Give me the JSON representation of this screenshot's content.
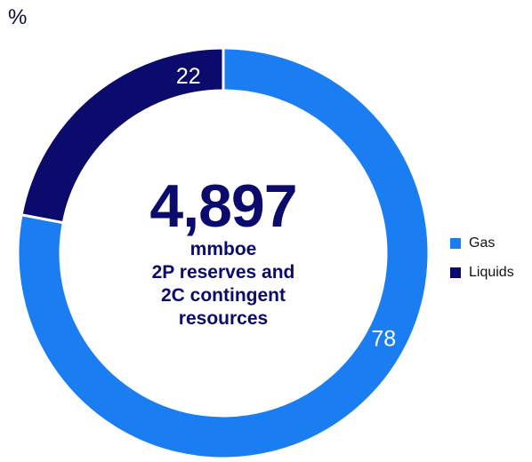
{
  "chart_data": {
    "type": "pie",
    "unit_label": "%",
    "center": {
      "value": "4,897",
      "lines": [
        "mmboe",
        "2P reserves and",
        "2C contingent",
        "resources"
      ]
    },
    "series": [
      {
        "name": "Gas",
        "value": 78,
        "color": "#1a7ef2"
      },
      {
        "name": "Liquids",
        "value": 22,
        "color": "#0b0b6e"
      }
    ],
    "legend_position": "right"
  }
}
